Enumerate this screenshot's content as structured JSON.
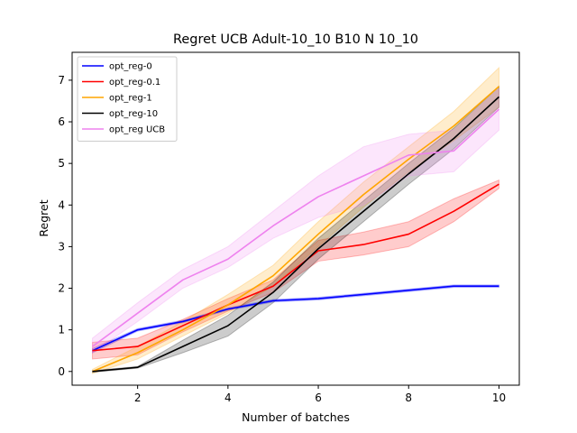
{
  "chart_data": {
    "type": "line",
    "title": "Regret UCB Adult-10_10 B10 N 10_10",
    "xlabel": "Number of batches",
    "ylabel": "Regret",
    "xlim": [
      0.55,
      10.45
    ],
    "ylim": [
      -0.33,
      7.67
    ],
    "xticks": [
      2,
      4,
      6,
      8,
      10
    ],
    "yticks": [
      0,
      1,
      2,
      3,
      4,
      5,
      6,
      7
    ],
    "grid": false,
    "legend_position": "top-left",
    "x": [
      1,
      2,
      3,
      4,
      5,
      6,
      7,
      8,
      9,
      10
    ],
    "series": [
      {
        "name": "opt_reg-0",
        "color": "#0000ff",
        "values": [
          0.5,
          1.0,
          1.2,
          1.5,
          1.7,
          1.75,
          1.85,
          1.95,
          2.05,
          2.05
        ],
        "lower": [
          0.45,
          0.97,
          1.17,
          1.47,
          1.67,
          1.72,
          1.82,
          1.92,
          2.02,
          2.02
        ],
        "upper": [
          0.55,
          1.03,
          1.23,
          1.53,
          1.73,
          1.78,
          1.88,
          1.98,
          2.08,
          2.08
        ]
      },
      {
        "name": "opt_reg-0.1",
        "color": "#ff0000",
        "values": [
          0.5,
          0.6,
          1.1,
          1.6,
          2.05,
          2.9,
          3.05,
          3.3,
          3.85,
          4.5
        ],
        "lower": [
          0.3,
          0.4,
          0.95,
          1.45,
          1.9,
          2.65,
          2.8,
          3.0,
          3.6,
          4.4
        ],
        "upper": [
          0.7,
          0.8,
          1.25,
          1.75,
          2.2,
          3.15,
          3.35,
          3.6,
          4.15,
          4.6
        ]
      },
      {
        "name": "opt_reg-1",
        "color": "#ffa500",
        "values": [
          0.0,
          0.45,
          1.0,
          1.6,
          2.3,
          3.3,
          4.25,
          5.1,
          5.9,
          6.85
        ],
        "lower": [
          -0.05,
          0.3,
          0.85,
          1.4,
          2.05,
          3.0,
          3.95,
          4.8,
          5.55,
          6.35
        ],
        "upper": [
          0.05,
          0.6,
          1.2,
          1.85,
          2.55,
          3.6,
          4.55,
          5.4,
          6.25,
          7.3
        ]
      },
      {
        "name": "opt_reg-10",
        "color": "#000000",
        "values": [
          0.0,
          0.1,
          0.6,
          1.1,
          1.9,
          2.95,
          3.85,
          4.75,
          5.6,
          6.6
        ],
        "lower": [
          -0.02,
          0.08,
          0.45,
          0.85,
          1.65,
          2.7,
          3.6,
          4.5,
          5.35,
          6.35
        ],
        "upper": [
          0.02,
          0.12,
          0.75,
          1.35,
          2.15,
          3.2,
          4.1,
          5.0,
          5.85,
          6.85
        ]
      },
      {
        "name": "opt_reg UCB",
        "color": "#ee82ee",
        "values": [
          0.6,
          1.4,
          2.2,
          2.7,
          3.5,
          4.2,
          4.7,
          5.2,
          5.3,
          6.3
        ],
        "lower": [
          0.45,
          1.2,
          2.0,
          2.5,
          3.2,
          3.7,
          4.0,
          4.7,
          4.8,
          5.8
        ],
        "upper": [
          0.8,
          1.65,
          2.45,
          3.0,
          3.85,
          4.7,
          5.4,
          5.7,
          5.8,
          6.8
        ]
      }
    ]
  }
}
